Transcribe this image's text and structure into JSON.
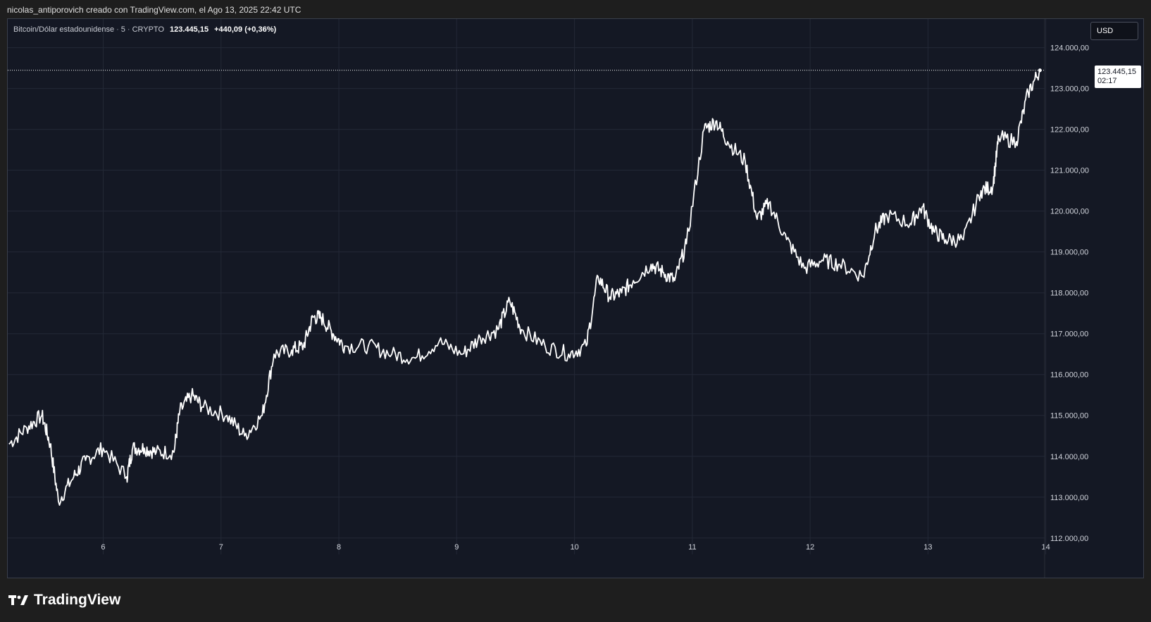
{
  "header": {
    "credit": "nicolas_antiporovich creado con TradingView.com, el Ago 13, 2025 22:42 UTC"
  },
  "legend": {
    "symbol": "Bitcoin/Dólar estadounidense",
    "interval": "5",
    "exchange": "CRYPTO",
    "last_price": "123.445,15",
    "change": "+440,09 (+0,36%)"
  },
  "toolbar": {
    "currency_label": "USD"
  },
  "price_label": {
    "price": "123.445,15",
    "countdown": "02:17"
  },
  "brand": {
    "name": "TradingView"
  },
  "colors": {
    "background": "#141824",
    "outer": "#1e1e1e",
    "grid": "#232836",
    "line": "#ffffff",
    "text": "#d1d4dc"
  },
  "chart_data": {
    "type": "line",
    "series": [
      {
        "x": [
          5.2,
          5.35,
          5.48,
          5.55,
          5.62,
          5.75,
          5.85,
          6.0,
          6.2,
          6.25,
          6.35,
          6.45,
          6.6,
          6.65,
          6.75,
          6.85,
          7.05,
          7.2,
          7.35,
          7.45,
          7.6,
          7.7,
          7.78,
          7.85,
          7.95,
          8.05,
          8.25,
          8.45,
          8.65,
          8.85,
          9.05,
          9.2,
          9.35,
          9.45,
          9.55,
          9.75,
          9.95,
          10.1,
          10.2,
          10.3,
          10.4,
          10.5,
          10.65,
          10.75,
          10.85,
          10.95,
          11.1,
          11.2,
          11.3,
          11.45,
          11.55,
          11.65,
          11.8,
          11.95,
          12.1,
          12.25,
          12.45,
          12.55,
          12.65,
          12.85,
          12.95,
          13.05,
          13.15,
          13.3,
          13.45,
          13.55,
          13.6,
          13.75,
          13.85,
          13.95
        ],
        "y": [
          114300,
          114700,
          115000,
          114300,
          112900,
          113500,
          113900,
          114200,
          113500,
          114200,
          114200,
          114100,
          114100,
          115100,
          115500,
          115200,
          115000,
          114500,
          115000,
          116500,
          116600,
          116700,
          117400,
          117400,
          117000,
          116700,
          116700,
          116500,
          116400,
          116800,
          116500,
          116900,
          117100,
          117800,
          117100,
          116700,
          116500,
          116700,
          118400,
          117900,
          118000,
          118300,
          118700,
          118500,
          118300,
          119200,
          122000,
          122200,
          121700,
          121200,
          119800,
          120200,
          119300,
          118600,
          118800,
          118700,
          118400,
          119500,
          119900,
          119700,
          120100,
          119500,
          119300,
          119300,
          120500,
          120600,
          121800,
          121700,
          122900,
          123445.15
        ]
      }
    ],
    "x_ticks": [
      "6",
      "7",
      "8",
      "9",
      "10",
      "11",
      "12",
      "13",
      "14"
    ],
    "y_ticks": [
      "112.000,00",
      "113.000,00",
      "114.000,00",
      "115.000,00",
      "116.000,00",
      "117.000,00",
      "118.000,00",
      "119.000,00",
      "120.000,00",
      "121.000,00",
      "122.000,00",
      "123.000,00",
      "124.000,00"
    ],
    "xlim": [
      5.19,
      13.99
    ],
    "ylim": [
      111600,
      124700
    ],
    "last_value": 123445.15,
    "grid": true
  }
}
